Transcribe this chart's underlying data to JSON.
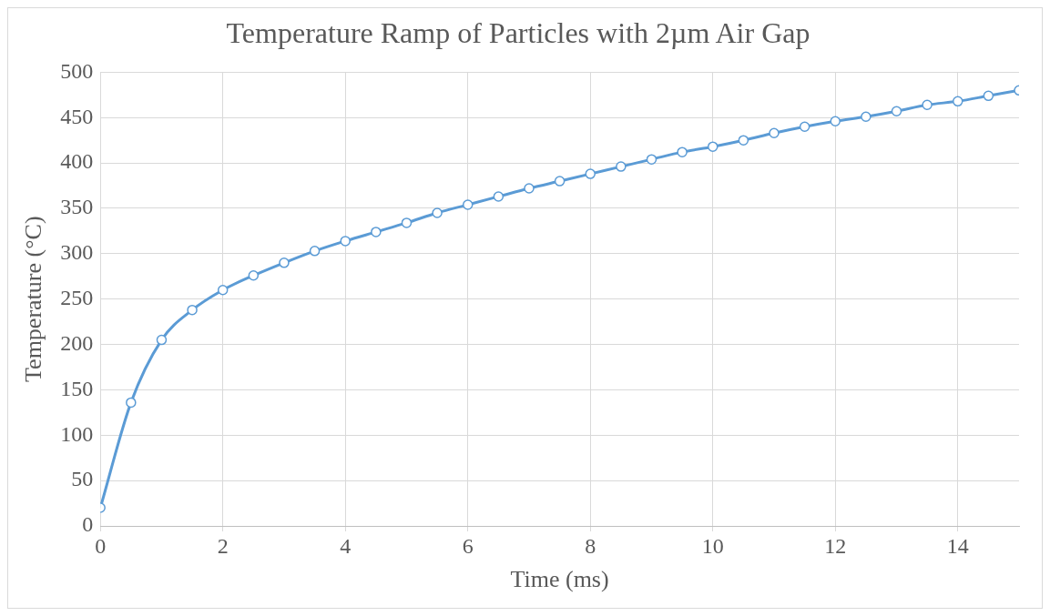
{
  "chart_data": {
    "type": "line",
    "title": "Temperature Ramp of Particles with 2µm Air Gap",
    "xlabel": "Time (ms)",
    "ylabel": "Temperature (°C)",
    "x": [
      0,
      0.5,
      1,
      1.5,
      2,
      2.5,
      3,
      3.5,
      4,
      4.5,
      5,
      5.5,
      6,
      6.5,
      7,
      7.5,
      8,
      8.5,
      9,
      9.5,
      10,
      10.5,
      11,
      11.5,
      12,
      12.5,
      13,
      13.5,
      14,
      14.5,
      15
    ],
    "series": [
      {
        "color": "#5b9bd5",
        "values": [
          20,
          136,
          205,
          238,
          260,
          276,
          290,
          303,
          314,
          324,
          334,
          345,
          354,
          363,
          372,
          380,
          388,
          396,
          404,
          412,
          418,
          425,
          433,
          440,
          446,
          451,
          457,
          464,
          468,
          474,
          480
        ]
      }
    ],
    "xlim": [
      0,
      15
    ],
    "xticks": [
      0,
      2,
      4,
      6,
      8,
      10,
      12,
      14
    ],
    "ylim": [
      0,
      500
    ],
    "yticks": [
      0,
      50,
      100,
      150,
      200,
      250,
      300,
      350,
      400,
      450,
      500
    ],
    "grid": true,
    "legend": false,
    "marker": "circle",
    "line_style": "solid"
  }
}
